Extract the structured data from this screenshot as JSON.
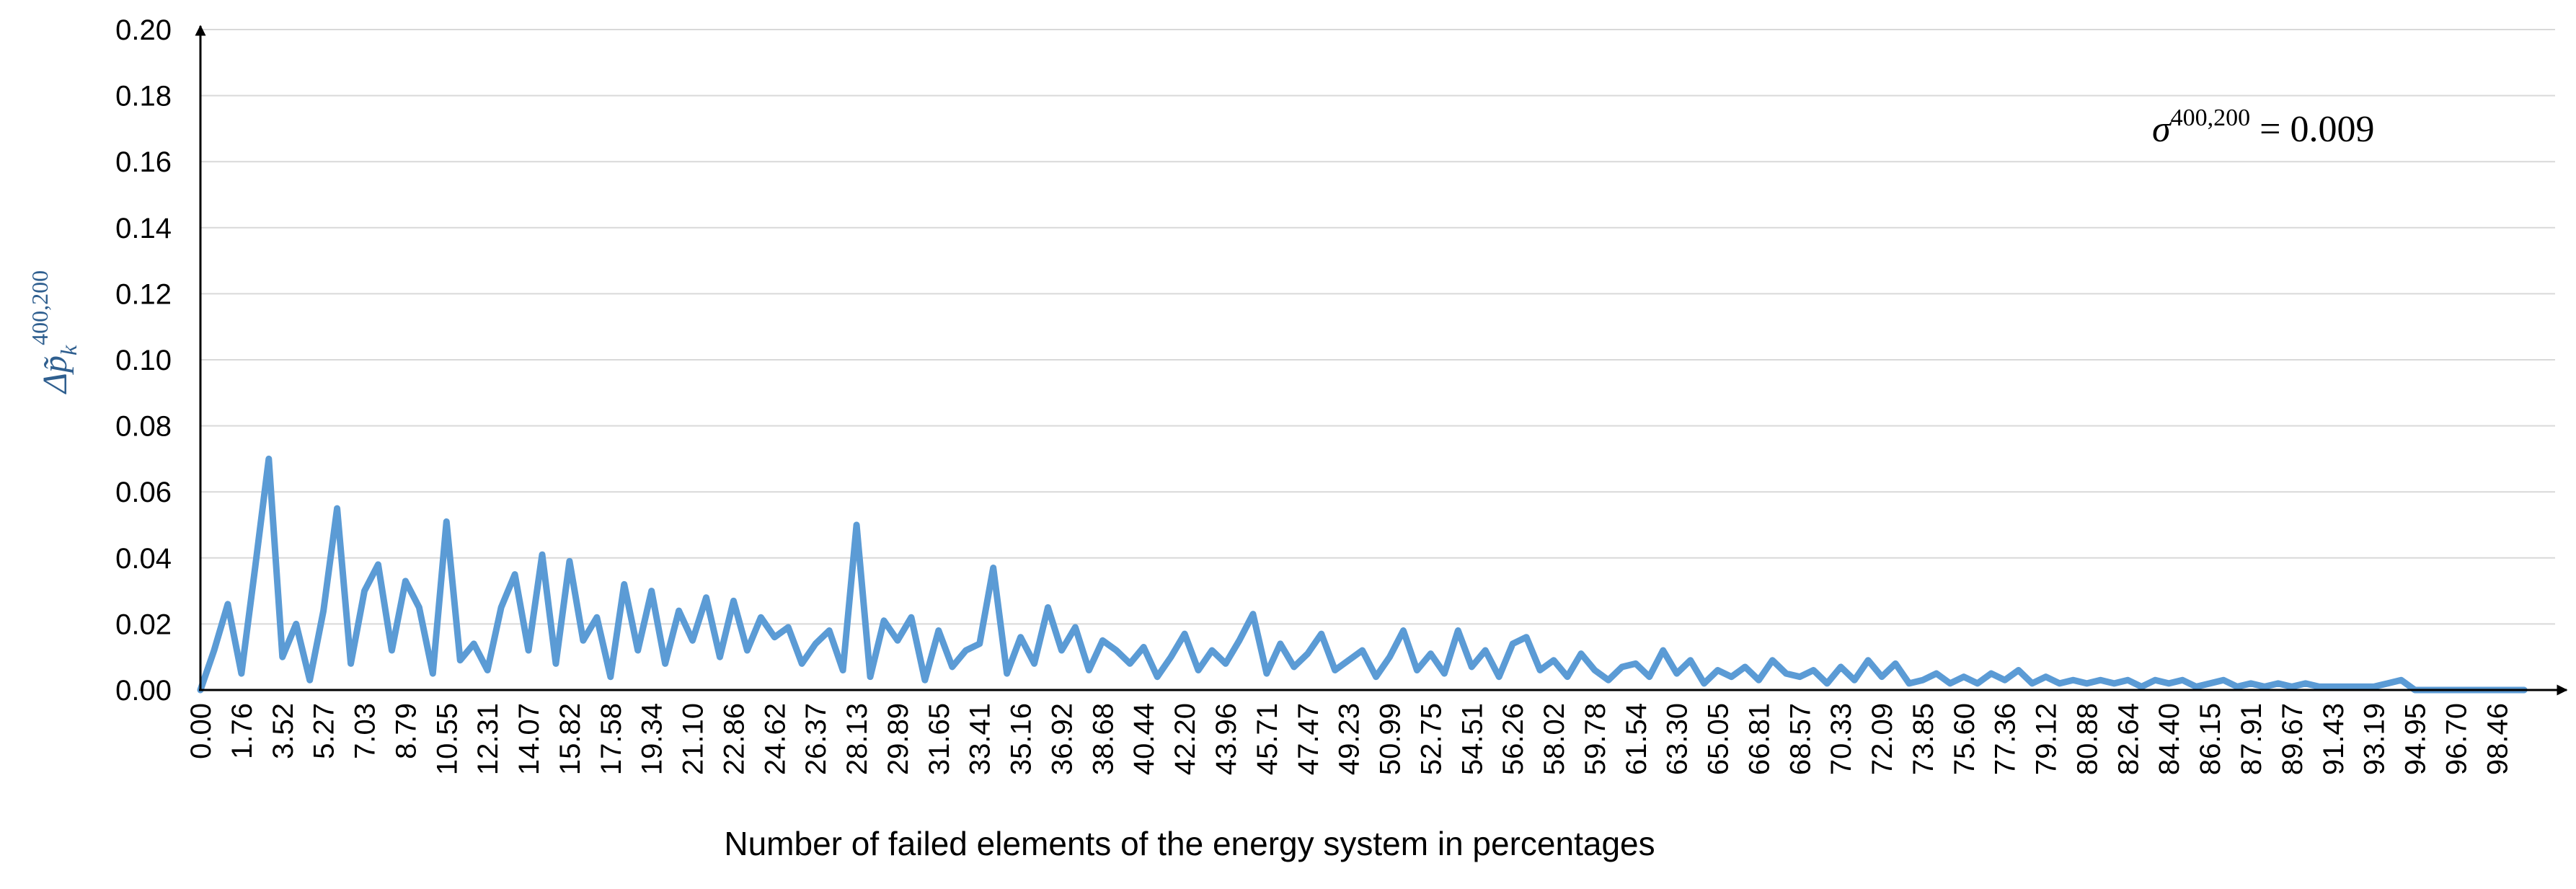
{
  "chart_data": {
    "type": "line",
    "xlabel": "Number  of failed elements of the energy system in percentages",
    "ylabel": {
      "main": "Δp̃",
      "sub": "k",
      "sup": "400,200"
    },
    "annotation": {
      "main": "σ",
      "sup": "400,200",
      "rest": " = 0.009"
    },
    "color": "#5b9bd5",
    "grid": true,
    "ylim": [
      0,
      0.2
    ],
    "yticks": [
      {
        "value": 0,
        "label": "0.00"
      },
      {
        "value": 0.02,
        "label": "0.02"
      },
      {
        "value": 0.04,
        "label": "0.04"
      },
      {
        "value": 0.06,
        "label": "0.06"
      },
      {
        "value": 0.08,
        "label": "0.08"
      },
      {
        "value": 0.1,
        "label": "0.10"
      },
      {
        "value": 0.12,
        "label": "0.12"
      },
      {
        "value": 0.14,
        "label": "0.14"
      },
      {
        "value": 0.16,
        "label": "0.16"
      },
      {
        "value": 0.18,
        "label": "0.18"
      },
      {
        "value": 0.2,
        "label": "0.20"
      }
    ],
    "categories": [
      "0.00",
      null,
      null,
      "1.76",
      null,
      null,
      "3.52",
      null,
      null,
      "5.27",
      null,
      null,
      "7.03",
      null,
      null,
      "8.79",
      null,
      null,
      "10.55",
      null,
      null,
      "12.31",
      null,
      null,
      "14.07",
      null,
      null,
      "15.82",
      null,
      null,
      "17.58",
      null,
      null,
      "19.34",
      null,
      null,
      "21.10",
      null,
      null,
      "22.86",
      null,
      null,
      "24.62",
      null,
      null,
      "26.37",
      null,
      null,
      "28.13",
      null,
      null,
      "29.89",
      null,
      null,
      "31.65",
      null,
      null,
      "33.41",
      null,
      null,
      "35.16",
      null,
      null,
      "36.92",
      null,
      null,
      "38.68",
      null,
      null,
      "40.44",
      null,
      null,
      "42.20",
      null,
      null,
      "43.96",
      null,
      null,
      "45.71",
      null,
      null,
      "47.47",
      null,
      null,
      "49.23",
      null,
      null,
      "50.99",
      null,
      null,
      "52.75",
      null,
      null,
      "54.51",
      null,
      null,
      "56.26",
      null,
      null,
      "58.02",
      null,
      null,
      "59.78",
      null,
      null,
      "61.54",
      null,
      null,
      "63.30",
      null,
      null,
      "65.05",
      null,
      null,
      "66.81",
      null,
      null,
      "68.57",
      null,
      null,
      "70.33",
      null,
      null,
      "72.09",
      null,
      null,
      "73.85",
      null,
      null,
      "75.60",
      null,
      null,
      "77.36",
      null,
      null,
      "79.12",
      null,
      null,
      "80.88",
      null,
      null,
      "82.64",
      null,
      null,
      "84.40",
      null,
      null,
      "86.15",
      null,
      null,
      "87.91",
      null,
      null,
      "89.67",
      null,
      null,
      "91.43",
      null,
      null,
      "93.19",
      null,
      null,
      "94.95",
      null,
      null,
      "96.70",
      null,
      null,
      "98.46",
      null,
      null
    ],
    "values": [
      0,
      0.012,
      0.026,
      0.005,
      0.037,
      0.07,
      0.01,
      0.02,
      0.003,
      0.024,
      0.055,
      0.008,
      0.03,
      0.038,
      0.012,
      0.033,
      0.025,
      0.005,
      0.051,
      0.009,
      0.014,
      0.006,
      0.025,
      0.035,
      0.012,
      0.041,
      0.008,
      0.039,
      0.015,
      0.022,
      0.004,
      0.032,
      0.012,
      0.03,
      0.008,
      0.024,
      0.015,
      0.028,
      0.01,
      0.027,
      0.012,
      0.022,
      0.016,
      0.019,
      0.008,
      0.014,
      0.018,
      0.006,
      0.05,
      0.004,
      0.021,
      0.015,
      0.022,
      0.003,
      0.018,
      0.007,
      0.012,
      0.014,
      0.037,
      0.005,
      0.016,
      0.008,
      0.025,
      0.012,
      0.019,
      0.006,
      0.015,
      0.012,
      0.008,
      0.013,
      0.004,
      0.01,
      0.017,
      0.006,
      0.012,
      0.008,
      0.015,
      0.023,
      0.005,
      0.014,
      0.007,
      0.011,
      0.017,
      0.006,
      0.009,
      0.012,
      0.004,
      0.01,
      0.018,
      0.006,
      0.011,
      0.005,
      0.018,
      0.007,
      0.012,
      0.004,
      0.014,
      0.016,
      0.006,
      0.009,
      0.004,
      0.011,
      0.006,
      0.003,
      0.007,
      0.008,
      0.004,
      0.012,
      0.005,
      0.009,
      0.002,
      0.006,
      0.004,
      0.007,
      0.003,
      0.009,
      0.005,
      0.004,
      0.006,
      0.002,
      0.007,
      0.003,
      0.009,
      0.004,
      0.008,
      0.002,
      0.003,
      0.005,
      0.002,
      0.004,
      0.002,
      0.005,
      0.003,
      0.006,
      0.002,
      0.004,
      0.002,
      0.003,
      0.002,
      0.003,
      0.002,
      0.003,
      0.001,
      0.003,
      0.002,
      0.003,
      0.001,
      0.002,
      0.003,
      0.001,
      0.002,
      0.001,
      0.002,
      0.001,
      0.002,
      0.001,
      0.001,
      0.001,
      0.001,
      0.001,
      0.002,
      0.003,
      0,
      0,
      0,
      0,
      0,
      0,
      0,
      0,
      0
    ]
  }
}
